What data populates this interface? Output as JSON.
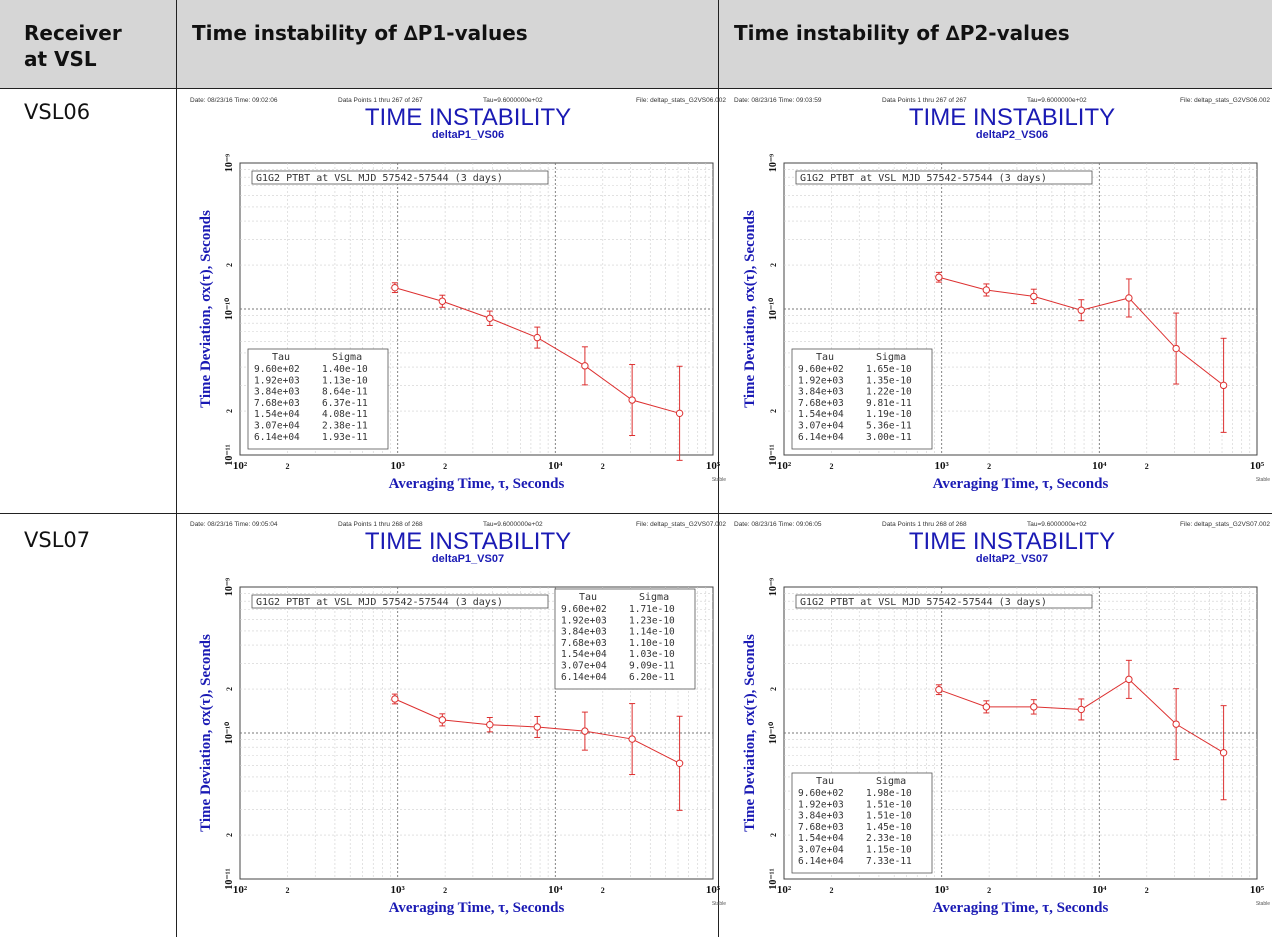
{
  "table": {
    "headers": [
      "Receiver\nat VSL",
      "Time instability of ∆P1-values",
      "Time instability of ∆P2-values"
    ],
    "rows": [
      {
        "label": "VSL06"
      },
      {
        "label": "VSL07"
      }
    ]
  },
  "plot_common": {
    "title": "TIME INSTABILITY",
    "xlabel": "Averaging Time, τ, Seconds",
    "ylabel": "Time Deviation, σx(τ), Seconds",
    "annotation": "G1G2 PTBT at VSL MJD 57542-57544 (3 days)",
    "tau_header": "Tau",
    "sigma_header": "Sigma",
    "tau_values": [
      "9.60e+02",
      "1.92e+03",
      "3.84e+03",
      "7.68e+03",
      "1.54e+04",
      "3.07e+04",
      "6.14e+04"
    ],
    "xticks": [
      "10²",
      "2",
      "10³",
      "2",
      "10⁴",
      "2",
      "10⁵"
    ],
    "yticks": [
      "10⁻⁹",
      "2",
      "10⁻¹⁰",
      "2",
      "10⁻¹¹"
    ],
    "footer_small": "Stable"
  },
  "plots": [
    {
      "date": "Date: 08/23/16  Time: 09:02:06",
      "points_info": "Data Points 1 thru 267 of 267",
      "tau0": "Tau=9.6000000e+02",
      "file": "File: deltap_stats_G2VS06.002",
      "subtitle": "deltaP1_VS06",
      "sigma_values": [
        "1.40e-10",
        "1.13e-10",
        "8.64e-11",
        "6.37e-11",
        "4.08e-11",
        "2.38e-11",
        "1.93e-11"
      ],
      "legend_position": "bottom-left"
    },
    {
      "date": "Date: 08/23/16  Time: 09:03:59",
      "points_info": "Data Points 1 thru 267 of 267",
      "tau0": "Tau=9.6000000e+02",
      "file": "File: deltap_stats_G2VS06.002",
      "subtitle": "deltaP2_VS06",
      "sigma_values": [
        "1.65e-10",
        "1.35e-10",
        "1.22e-10",
        "9.81e-11",
        "1.19e-10",
        "5.36e-11",
        "3.00e-11"
      ],
      "legend_position": "bottom-left"
    },
    {
      "date": "Date: 08/23/16  Time: 09:05:04",
      "points_info": "Data Points 1 thru 268 of 268",
      "tau0": "Tau=9.6000000e+02",
      "file": "File: deltap_stats_G2VS07.002",
      "subtitle": "deltaP1_VS07",
      "sigma_values": [
        "1.71e-10",
        "1.23e-10",
        "1.14e-10",
        "1.10e-10",
        "1.03e-10",
        "9.09e-11",
        "6.20e-11"
      ],
      "legend_position": "top-right"
    },
    {
      "date": "Date: 08/23/16  Time: 09:06:05",
      "points_info": "Data Points 1 thru 268 of 268",
      "tau0": "Tau=9.6000000e+02",
      "file": "File: deltap_stats_G2VS07.002",
      "subtitle": "deltaP2_VS07",
      "sigma_values": [
        "1.98e-10",
        "1.51e-10",
        "1.51e-10",
        "1.45e-10",
        "2.33e-10",
        "1.15e-10",
        "7.33e-11"
      ],
      "legend_position": "bottom-left"
    }
  ],
  "chart_data": [
    {
      "type": "scatter",
      "title": "TIME INSTABILITY",
      "subtitle": "deltaP1_VS06",
      "xlabel": "Averaging Time, τ, Seconds",
      "ylabel": "Time Deviation, σx(τ), Seconds",
      "x": [
        960,
        1920,
        3840,
        7680,
        15400,
        30700,
        61400
      ],
      "y": [
        1.4e-10,
        1.13e-10,
        8.64e-11,
        6.37e-11,
        4.08e-11,
        2.38e-11,
        1.93e-11
      ],
      "xscale": "log",
      "yscale": "log",
      "xlim": [
        100,
        100000
      ],
      "ylim": [
        1e-11,
        1e-09
      ],
      "grid": true,
      "error_bars": true,
      "color": "#dd3030",
      "legend_position": "bottom-left"
    },
    {
      "type": "scatter",
      "title": "TIME INSTABILITY",
      "subtitle": "deltaP2_VS06",
      "xlabel": "Averaging Time, τ, Seconds",
      "ylabel": "Time Deviation, σx(τ), Seconds",
      "x": [
        960,
        1920,
        3840,
        7680,
        15400,
        30700,
        61400
      ],
      "y": [
        1.65e-10,
        1.35e-10,
        1.22e-10,
        9.81e-11,
        1.19e-10,
        5.36e-11,
        3e-11
      ],
      "xscale": "log",
      "yscale": "log",
      "xlim": [
        100,
        100000
      ],
      "ylim": [
        1e-11,
        1e-09
      ],
      "grid": true,
      "error_bars": true,
      "color": "#dd3030",
      "legend_position": "bottom-left"
    },
    {
      "type": "scatter",
      "title": "TIME INSTABILITY",
      "subtitle": "deltaP1_VS07",
      "xlabel": "Averaging Time, τ, Seconds",
      "ylabel": "Time Deviation, σx(τ), Seconds",
      "x": [
        960,
        1920,
        3840,
        7680,
        15400,
        30700,
        61400
      ],
      "y": [
        1.71e-10,
        1.23e-10,
        1.14e-10,
        1.1e-10,
        1.03e-10,
        9.09e-11,
        6.2e-11
      ],
      "xscale": "log",
      "yscale": "log",
      "xlim": [
        100,
        100000
      ],
      "ylim": [
        1e-11,
        1e-09
      ],
      "grid": true,
      "error_bars": true,
      "color": "#dd3030",
      "legend_position": "top-right"
    },
    {
      "type": "scatter",
      "title": "TIME INSTABILITY",
      "subtitle": "deltaP2_VS07",
      "xlabel": "Averaging Time, τ, Seconds",
      "ylabel": "Time Deviation, σx(τ), Seconds",
      "x": [
        960,
        1920,
        3840,
        7680,
        15400,
        30700,
        61400
      ],
      "y": [
        1.98e-10,
        1.51e-10,
        1.51e-10,
        1.45e-10,
        2.33e-10,
        1.15e-10,
        7.33e-11
      ],
      "xscale": "log",
      "yscale": "log",
      "xlim": [
        100,
        100000
      ],
      "ylim": [
        1e-11,
        1e-09
      ],
      "grid": true,
      "error_bars": true,
      "color": "#dd3030",
      "legend_position": "bottom-left"
    }
  ]
}
